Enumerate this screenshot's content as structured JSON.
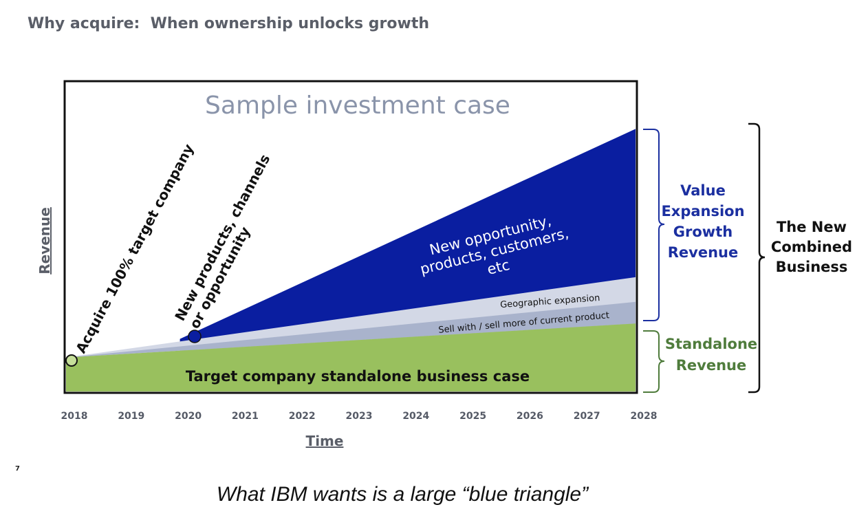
{
  "slide": {
    "title": "Why acquire:  When ownership unlocks growth",
    "page_number": "7",
    "caption": "What IBM wants is a large “blue triangle”"
  },
  "chart_data": {
    "type": "area",
    "title": "Sample investment case",
    "xlabel": "Time",
    "ylabel": "Revenue",
    "x": [
      "2018",
      "2019",
      "2020",
      "2021",
      "2022",
      "2023",
      "2024",
      "2025",
      "2026",
      "2027",
      "2028"
    ],
    "ylim": [
      0,
      100
    ],
    "grid": false,
    "series": [
      {
        "name": "Target company standalone business case",
        "color": "#99c05e",
        "x": [
          "2018",
          "2028"
        ],
        "values": [
          11,
          22
        ]
      },
      {
        "name": "Sell with / sell more of current product",
        "color": "#a9b3cc",
        "x": [
          "2018",
          "2028"
        ],
        "values": [
          11,
          29
        ]
      },
      {
        "name": "Geographic expansion",
        "color": "#d3d8e6",
        "x": [
          "2018",
          "2028"
        ],
        "values": [
          11,
          37
        ]
      },
      {
        "name": "New opportunity, products, customers, etc",
        "color": "#0a1ea0",
        "x": [
          "2020",
          "2028"
        ],
        "values": [
          17,
          85
        ]
      }
    ],
    "annotations": {
      "acquire": "Acquire 100% target company",
      "new_products": "New products, channels or opportunity",
      "new_products_line1": "New products, channels",
      "new_products_line2": "or opportunity",
      "opportunity_line1": "New opportunity,",
      "opportunity_line2": "products, customers,",
      "opportunity_line3": "etc"
    },
    "brackets": {
      "value_expansion": [
        "Value",
        "Expansion",
        "Growth",
        "Revenue"
      ],
      "standalone": [
        "Standalone",
        "Revenue"
      ],
      "combined": [
        "The New",
        "Combined",
        "Business"
      ]
    },
    "colors": {
      "frame": "#111111",
      "title": "#8a94aa",
      "blue_text": "#1b2fa0",
      "green_text": "#4f7c3c",
      "axis_label": "#5a5e68"
    }
  }
}
